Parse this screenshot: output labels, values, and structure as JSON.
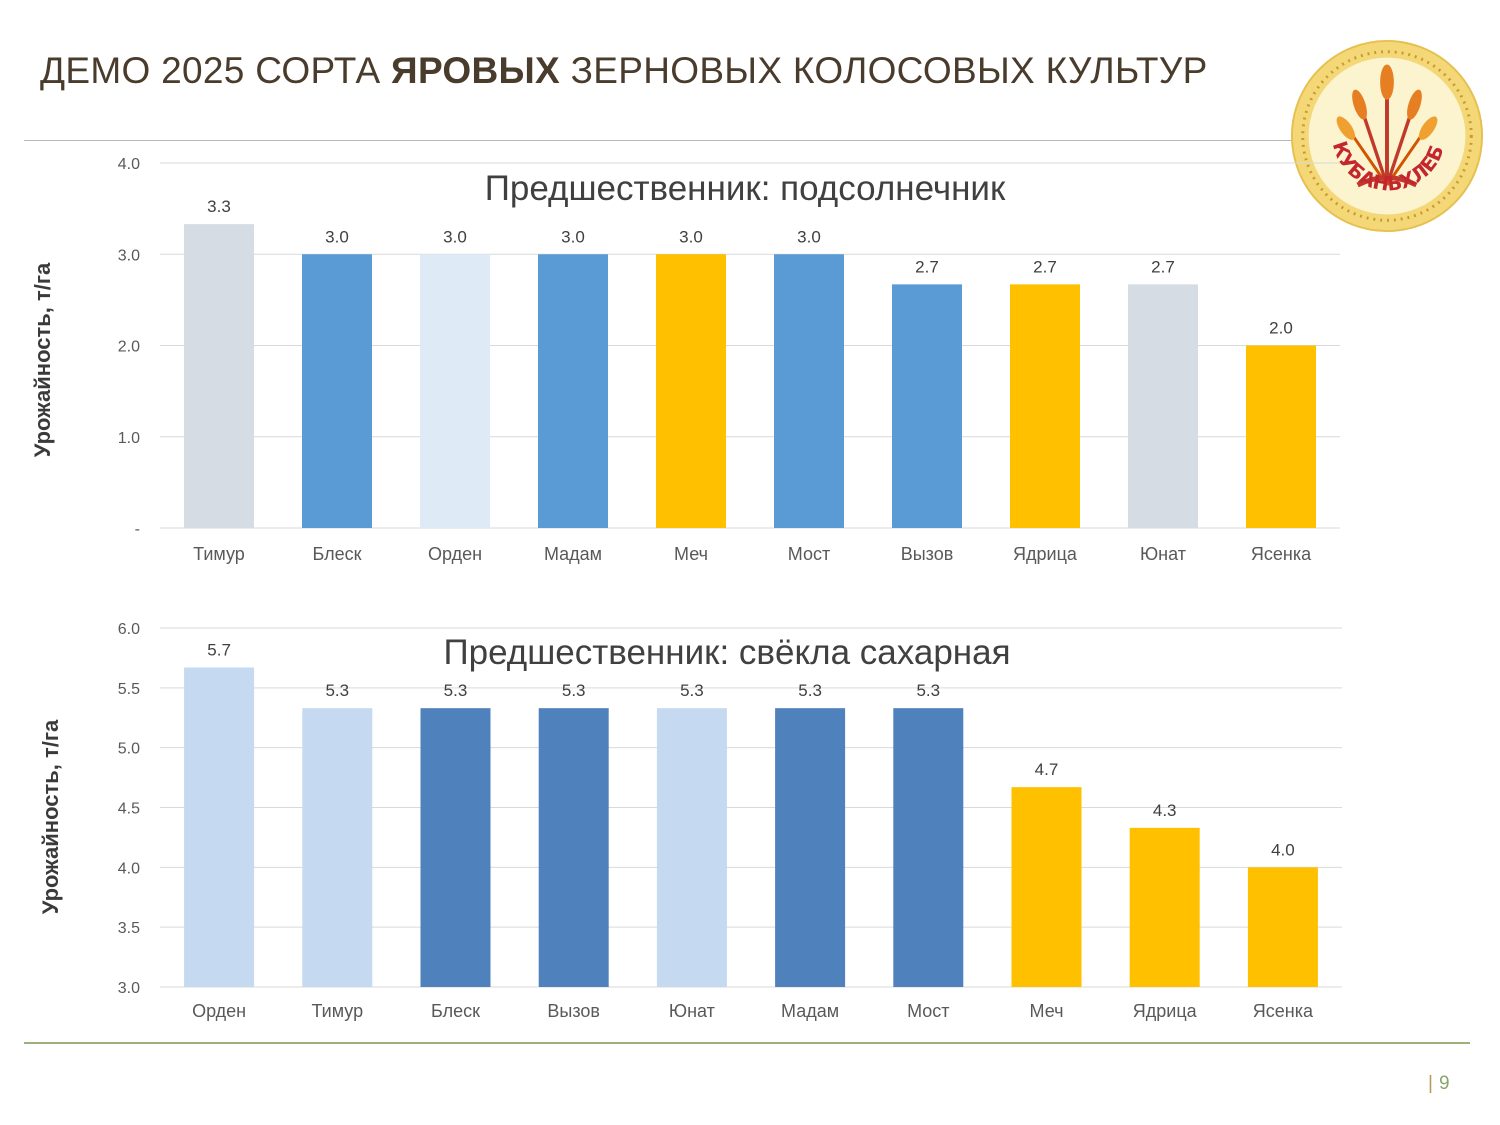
{
  "slide": {
    "title_pre": "ДЕМО 2025 СОРТА ",
    "title_bold": "ЯРОВЫХ",
    "title_post": " ЗЕРНОВЫХ КОЛОСОВЫХ КУЛЬТУР",
    "page_separator": "|",
    "page_number": "9"
  },
  "logo": {
    "text": "КУБАНЬХЛЕБ",
    "colors": {
      "ring": "#f3d36a",
      "inner": "#fbf0c4",
      "text": "#c4262e"
    }
  },
  "colors": {
    "gray": "#d6dce4",
    "blue_mid": "#5b9bd5",
    "blue_pale": "#deebf7",
    "blue_light": "#c5d9f0",
    "blue_dark": "#4f81bd",
    "gold": "#ffc000",
    "grid": "#d9d9d9"
  },
  "chart_data": [
    {
      "type": "bar",
      "title": "Предшественник: подсолнечник",
      "ylabel": "Урожайность, т/га",
      "xlabel": "",
      "ylim": [
        0,
        4
      ],
      "yticks": [
        0,
        1,
        2,
        3,
        4
      ],
      "ytick_labels": [
        "-",
        "1.0",
        "2.0",
        "3.0",
        "4.0"
      ],
      "grid": true,
      "categories": [
        "Тимур",
        "Блеск",
        "Орден",
        "Мадам",
        "Меч",
        "Мост",
        "Вызов",
        "Ядрица",
        "Юнат",
        "Ясенка"
      ],
      "values": [
        3.33,
        3.0,
        3.0,
        3.0,
        3.0,
        3.0,
        2.67,
        2.67,
        2.67,
        2.0
      ],
      "value_labels": [
        "3.3",
        "3.0",
        "3.0",
        "3.0",
        "3.0",
        "3.0",
        "2.7",
        "2.7",
        "2.7",
        "2.0"
      ],
      "bar_colors": [
        "#d6dce4",
        "#5b9bd5",
        "#deebf7",
        "#5b9bd5",
        "#ffc000",
        "#5b9bd5",
        "#5b9bd5",
        "#ffc000",
        "#d6dce4",
        "#ffc000"
      ]
    },
    {
      "type": "bar",
      "title": "Предшественник: свёкла сахарная",
      "ylabel": "Урожайность, т/га",
      "xlabel": "",
      "ylim": [
        3,
        6
      ],
      "yticks": [
        3.0,
        3.5,
        4.0,
        4.5,
        5.0,
        5.5,
        6.0
      ],
      "ytick_labels": [
        "3.0",
        "3.5",
        "4.0",
        "4.5",
        "5.0",
        "5.5",
        "6.0"
      ],
      "grid": true,
      "categories": [
        "Орден",
        "Тимур",
        "Блеск",
        "Вызов",
        "Юнат",
        "Мадам",
        "Мост",
        "Меч",
        "Ядрица",
        "Ясенка"
      ],
      "values": [
        5.67,
        5.33,
        5.33,
        5.33,
        5.33,
        5.33,
        5.33,
        4.67,
        4.33,
        4.0
      ],
      "value_labels": [
        "5.7",
        "5.3",
        "5.3",
        "5.3",
        "5.3",
        "5.3",
        "5.3",
        "4.7",
        "4.3",
        "4.0"
      ],
      "bar_colors": [
        "#c5d9f0",
        "#c5d9f0",
        "#4f81bd",
        "#4f81bd",
        "#c5d9f0",
        "#4f81bd",
        "#4f81bd",
        "#ffc000",
        "#ffc000",
        "#ffc000"
      ]
    }
  ]
}
